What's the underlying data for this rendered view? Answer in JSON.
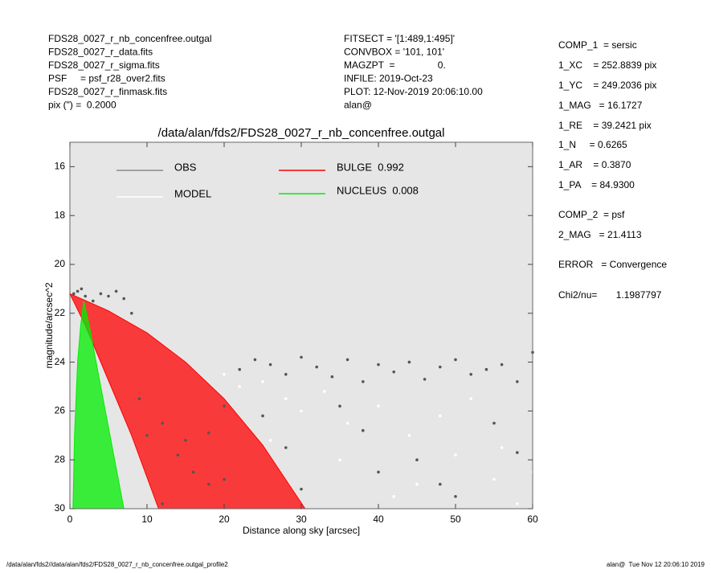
{
  "chart_data": {
    "type": "scatter",
    "title": "/data/alan/fds2/FDS28_0027_r_nb_concenfree.outgal",
    "xlabel": "Distance along sky [arcsec]",
    "ylabel": "magnitude/arcsec^2",
    "xlim": [
      0,
      60
    ],
    "ylim": [
      30,
      15
    ],
    "xticks": [
      0,
      10,
      20,
      30,
      40,
      50,
      60
    ],
    "yticks": [
      16,
      18,
      20,
      22,
      24,
      26,
      28,
      30
    ],
    "background": "#e6e6e6",
    "header_left": [
      "FDS28_0027_r_nb_concenfree.outgal",
      "FDS28_0027_r_data.fits",
      "FDS28_0027_r_sigma.fits",
      "PSF     = psf_r28_over2.fits",
      "FDS28_0027_r_finmask.fits",
      "pix (\") =  0.2000"
    ],
    "header_mid": [
      "FITSECT = '[1:489,1:495]'",
      "CONVBOX = '101, 101'",
      "MAGZPT  =                0.",
      "INFILE: 2019-Oct-23",
      "PLOT: 12-Nov-2019 20:06:10.00",
      "alan@"
    ],
    "params": [
      "COMP_1  = sersic",
      "1_XC    = 252.8839 pix",
      "1_YC    = 249.2036 pix",
      "1_MAG   = 16.1727",
      "1_RE    = 39.2421 pix",
      "1_N     = 0.6265",
      "1_AR    = 0.3870",
      "1_PA    = 84.9300",
      "COMP_2  = psf",
      "2_MAG   = 21.4113",
      "ERROR   = Convergence",
      "Chi2/nu=       1.1987797"
    ],
    "footer_left": "/data/alan/fds2//data/alan/fds2/FDS28_0027_r_nb_concenfree.outgal_profile2",
    "footer_right": "alan@  Tue Nov 12 20:06:10 2019",
    "series": [
      {
        "name": "OBS",
        "color": "#555555",
        "legend_color": "#888888",
        "style": "points",
        "x": [
          0.5,
          1,
          1.5,
          2,
          3,
          4,
          5,
          6,
          7,
          8,
          9,
          10,
          12,
          14,
          16,
          18,
          20,
          22,
          24,
          26,
          28,
          30,
          32,
          34,
          36,
          38,
          40,
          42,
          44,
          46,
          48,
          50,
          52,
          54,
          56,
          58,
          60,
          25,
          35,
          45,
          55,
          15,
          20,
          30,
          40,
          50,
          12,
          18,
          28,
          38,
          48,
          58
        ],
        "values": [
          21.2,
          21.1,
          21.0,
          21.3,
          21.5,
          21.2,
          21.3,
          21.1,
          21.4,
          22.0,
          25.5,
          27.0,
          26.5,
          27.8,
          28.5,
          29.0,
          25.8,
          24.3,
          23.9,
          24.1,
          24.5,
          23.8,
          24.2,
          24.6,
          23.9,
          24.8,
          24.1,
          24.4,
          24.0,
          24.7,
          24.2,
          23.9,
          24.5,
          24.3,
          24.1,
          24.8,
          23.6,
          26.2,
          25.8,
          28.0,
          26.5,
          27.2,
          28.8,
          29.2,
          28.5,
          29.5,
          29.8,
          26.9,
          27.5,
          26.8,
          29.0,
          27.7
        ]
      },
      {
        "name": "MODEL",
        "color": "#ffffff",
        "legend_color": "#ffffff",
        "style": "points",
        "x": [
          20,
          22,
          25,
          28,
          30,
          33,
          36,
          40,
          44,
          48,
          52,
          56,
          60,
          35,
          45,
          55,
          42,
          50,
          58,
          26
        ],
        "values": [
          24.5,
          25.0,
          24.8,
          25.5,
          26.0,
          25.2,
          26.5,
          25.8,
          27.0,
          26.2,
          25.5,
          27.5,
          28.5,
          28.0,
          29.0,
          28.8,
          29.5,
          27.8,
          29.8,
          27.2
        ]
      },
      {
        "name": "BULGE  0.992",
        "color": "#ff0000",
        "legend_color": "#ff0000",
        "style": "polygon",
        "x": [
          0,
          5,
          10,
          15,
          20,
          25,
          30.5,
          11.5,
          8,
          6,
          4,
          2
        ],
        "values": [
          21.2,
          21.9,
          22.8,
          24.0,
          25.5,
          27.4,
          30,
          30,
          27,
          25.5,
          24,
          22.5
        ]
      },
      {
        "name": "NUCLEUS  0.008",
        "color": "#00ee00",
        "legend_color": "#00ee00",
        "style": "polygon",
        "x": [
          1.8,
          2.5,
          4,
          5.5,
          7,
          0.4,
          0.6,
          1.0,
          1.4
        ],
        "values": [
          21.5,
          22.5,
          25,
          27.5,
          30,
          30,
          27,
          24,
          22.5
        ]
      }
    ]
  }
}
